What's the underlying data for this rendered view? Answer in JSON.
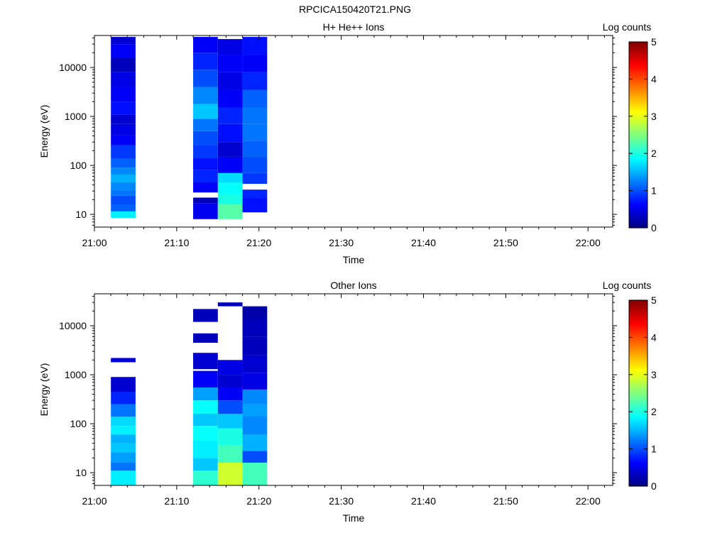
{
  "page_title": "RPCICA150420T21.PNG",
  "colors": {
    "colormap": [
      "#00007f",
      "#0000ff",
      "#007fff",
      "#00ffff",
      "#7fff7f",
      "#ffff00",
      "#ff7f00",
      "#ff0000",
      "#7f0000"
    ]
  },
  "chart_data": [
    {
      "type": "heatmap",
      "title": "H+ He++ Ions",
      "xlabel": "Time",
      "ylabel": "Energy (eV)",
      "colorbar_label": "Log counts",
      "x_ticks": [
        "21:00",
        "21:10",
        "21:20",
        "21:30",
        "21:40",
        "21:50",
        "22:00"
      ],
      "x_range": [
        "21:00",
        "22:03"
      ],
      "y_scale": "log",
      "y_ticks": [
        "10",
        "100",
        "1000",
        "10000"
      ],
      "y_range": [
        5.5,
        45000
      ],
      "colorbar_range": [
        0,
        5
      ],
      "colorbar_ticks": [
        "0",
        "1",
        "2",
        "3",
        "4",
        "5"
      ],
      "columns": [
        {
          "t_start": "21:02",
          "t_end": "21:05",
          "bins": [
            [
              8.5,
              11.5,
              1.8
            ],
            [
              11.5,
              16,
              1.1
            ],
            [
              16,
              24,
              1.0
            ],
            [
              24,
              32,
              1.2
            ],
            [
              32,
              45,
              1.3
            ],
            [
              45,
              65,
              1.5
            ],
            [
              65,
              90,
              1.3
            ],
            [
              90,
              140,
              1.1
            ],
            [
              140,
              260,
              0.9
            ],
            [
              260,
              420,
              0.6
            ],
            [
              420,
              700,
              0.5
            ],
            [
              700,
              1100,
              0.4
            ],
            [
              1100,
              2000,
              0.7
            ],
            [
              2000,
              4000,
              0.6
            ],
            [
              4000,
              8000,
              0.5
            ],
            [
              8000,
              16000,
              0.3
            ],
            [
              16000,
              30000,
              0.6
            ],
            [
              30000,
              42000,
              0.4
            ]
          ]
        },
        {
          "t_start": "21:12",
          "t_end": "21:15",
          "bins": [
            [
              8,
              17,
              0.55
            ],
            [
              17,
              22,
              0.3
            ],
            [
              28,
              45,
              0.6
            ],
            [
              45,
              80,
              0.8
            ],
            [
              80,
              140,
              0.7
            ],
            [
              140,
              260,
              0.9
            ],
            [
              260,
              500,
              1.0
            ],
            [
              500,
              900,
              1.2
            ],
            [
              900,
              1800,
              1.6
            ],
            [
              1800,
              4000,
              1.3
            ],
            [
              4000,
              9000,
              1.0
            ],
            [
              9000,
              20000,
              0.8
            ],
            [
              20000,
              42000,
              0.6
            ]
          ]
        },
        {
          "t_start": "21:15",
          "t_end": "21:18",
          "bins": [
            [
              8,
              16,
              2.3
            ],
            [
              16,
              26,
              2.0
            ],
            [
              26,
              45,
              1.9
            ],
            [
              45,
              70,
              1.7
            ],
            [
              70,
              150,
              0.6
            ],
            [
              150,
              300,
              0.4
            ],
            [
              300,
              700,
              0.7
            ],
            [
              700,
              1500,
              0.8
            ],
            [
              1500,
              3500,
              0.6
            ],
            [
              3500,
              8000,
              0.5
            ],
            [
              8000,
              18000,
              0.6
            ],
            [
              18000,
              38000,
              0.5
            ]
          ]
        },
        {
          "t_start": "21:18",
          "t_end": "21:21",
          "bins": [
            [
              11,
              22,
              0.7
            ],
            [
              22,
              32,
              0.8
            ],
            [
              42,
              70,
              0.9
            ],
            [
              70,
              150,
              1.0
            ],
            [
              150,
              320,
              1.1
            ],
            [
              320,
              700,
              1.2
            ],
            [
              700,
              1500,
              1.2
            ],
            [
              1500,
              3500,
              1.1
            ],
            [
              3500,
              8000,
              0.8
            ],
            [
              8000,
              18000,
              0.6
            ],
            [
              18000,
              42000,
              0.7
            ]
          ]
        }
      ]
    },
    {
      "type": "heatmap",
      "title": "Other Ions",
      "xlabel": "Time",
      "ylabel": "Energy (eV)",
      "colorbar_label": "Log counts",
      "x_ticks": [
        "21:00",
        "21:10",
        "21:20",
        "21:30",
        "21:40",
        "21:50",
        "22:00"
      ],
      "x_range": [
        "21:00",
        "22:03"
      ],
      "y_scale": "log",
      "y_ticks": [
        "10",
        "100",
        "1000",
        "10000"
      ],
      "y_range": [
        5.5,
        45000
      ],
      "colorbar_range": [
        0,
        5
      ],
      "colorbar_ticks": [
        "0",
        "1",
        "2",
        "3",
        "4",
        "5"
      ],
      "columns": [
        {
          "t_start": "21:02",
          "t_end": "21:05",
          "bins": [
            [
              5.5,
              11,
              1.8
            ],
            [
              11,
              16,
              1.2
            ],
            [
              16,
              26,
              1.4
            ],
            [
              26,
              40,
              1.6
            ],
            [
              40,
              60,
              1.5
            ],
            [
              60,
              90,
              1.8
            ],
            [
              90,
              140,
              1.7
            ],
            [
              140,
              250,
              1.2
            ],
            [
              250,
              450,
              0.8
            ],
            [
              450,
              900,
              0.4
            ],
            [
              1800,
              2200,
              0.5
            ]
          ]
        },
        {
          "t_start": "21:12",
          "t_end": "21:15",
          "bins": [
            [
              5.5,
              11,
              2.1
            ],
            [
              11,
              20,
              1.6
            ],
            [
              20,
              45,
              1.8
            ],
            [
              45,
              90,
              1.9
            ],
            [
              90,
              160,
              1.6
            ],
            [
              160,
              300,
              1.9
            ],
            [
              300,
              550,
              1.4
            ],
            [
              550,
              1200,
              0.6
            ],
            [
              1300,
              2800,
              0.4
            ],
            [
              4500,
              7000,
              0.3
            ],
            [
              12000,
              22000,
              0.3
            ]
          ]
        },
        {
          "t_start": "21:15",
          "t_end": "21:18",
          "bins": [
            [
              5.5,
              16,
              2.9
            ],
            [
              16,
              36,
              2.2
            ],
            [
              36,
              80,
              2.0
            ],
            [
              80,
              160,
              1.6
            ],
            [
              160,
              300,
              1.0
            ],
            [
              300,
              550,
              0.6
            ],
            [
              550,
              1000,
              0.4
            ],
            [
              1000,
              2000,
              0.5
            ],
            [
              25000,
              30000,
              0.3
            ]
          ]
        },
        {
          "t_start": "21:18",
          "t_end": "21:21",
          "bins": [
            [
              5.5,
              16,
              2.2
            ],
            [
              16,
              28,
              1.0
            ],
            [
              28,
              60,
              1.5
            ],
            [
              60,
              140,
              1.3
            ],
            [
              140,
              250,
              1.4
            ],
            [
              250,
              500,
              1.3
            ],
            [
              500,
              1100,
              0.5
            ],
            [
              1100,
              2500,
              0.4
            ],
            [
              2500,
              6000,
              0.3
            ],
            [
              6000,
              14000,
              0.3
            ],
            [
              14000,
              25000,
              0.2
            ]
          ]
        }
      ]
    }
  ]
}
